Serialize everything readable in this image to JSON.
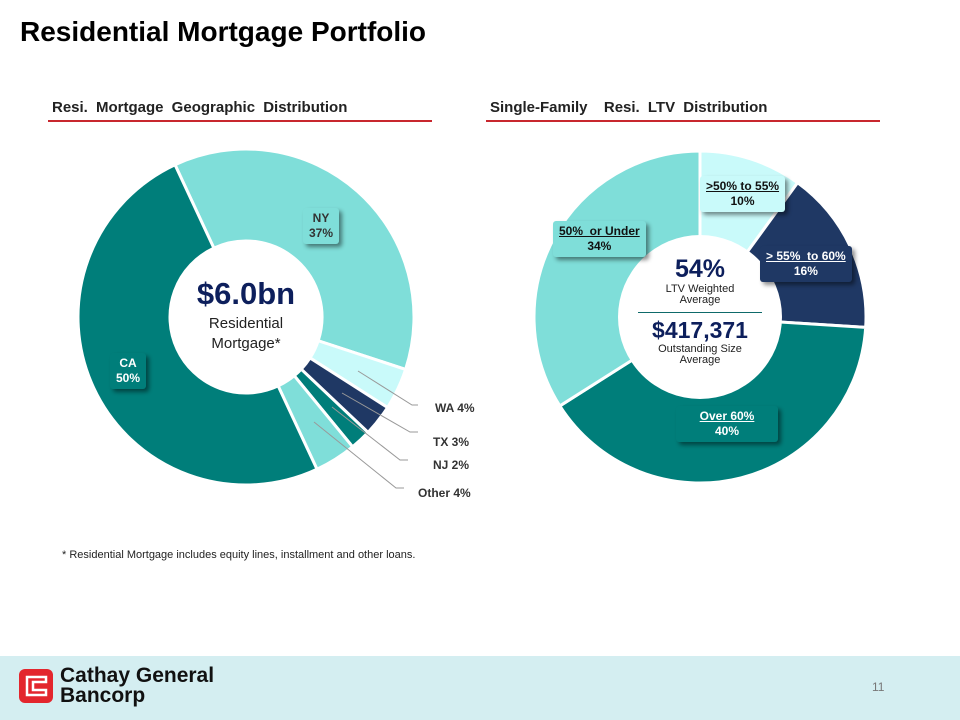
{
  "page": {
    "title": "Residential Mortgage Portfolio",
    "footnote": "* Residential Mortgage includes equity lines, installment and other loans.",
    "page_number": "11",
    "logo_text_line1": "Cathay General",
    "logo_text_line2": "Bancorp"
  },
  "colors": {
    "teal": "#007e7a",
    "light_teal": "#7fded9",
    "pale_teal": "#c9fafa",
    "navy": "#1f3864",
    "accent_red": "#c8272e"
  },
  "chart_data": [
    {
      "type": "pie",
      "subtype": "donut",
      "title": "Resi. Mortgage Geographic Distribution",
      "center_value": "$6.0bn",
      "center_label": "Residential Mortgage*",
      "categories": [
        "NY",
        "WA",
        "TX",
        "NJ",
        "Other",
        "CA"
      ],
      "values": [
        37,
        4,
        3,
        2,
        4,
        50
      ],
      "labels": [
        "NY 37%",
        "WA 4%",
        "TX 3%",
        "NJ 2%",
        "Other 4%",
        "CA 50%"
      ],
      "slice_colors": [
        "#7fded9",
        "#c9fafa",
        "#1f3864",
        "#007e7a",
        "#7fded9",
        "#007e7a"
      ]
    },
    {
      "type": "pie",
      "title": "Single-Family  Resi. LTV Distribution",
      "center_value": "54%",
      "center_label": "LTV Weighted Average",
      "center_value2": "$417,371",
      "center_label2": "Outstanding Size Average",
      "categories": [
        ">50%  to 55%",
        "> 55%  to 60%",
        "Over 60%",
        "50%  or Under"
      ],
      "values": [
        10,
        16,
        40,
        34
      ],
      "labels": [
        "10%",
        "16%",
        "40%",
        "34%"
      ],
      "slice_colors": [
        "#c9fafa",
        "#1f3864",
        "#007e7a",
        "#7fded9"
      ]
    }
  ]
}
